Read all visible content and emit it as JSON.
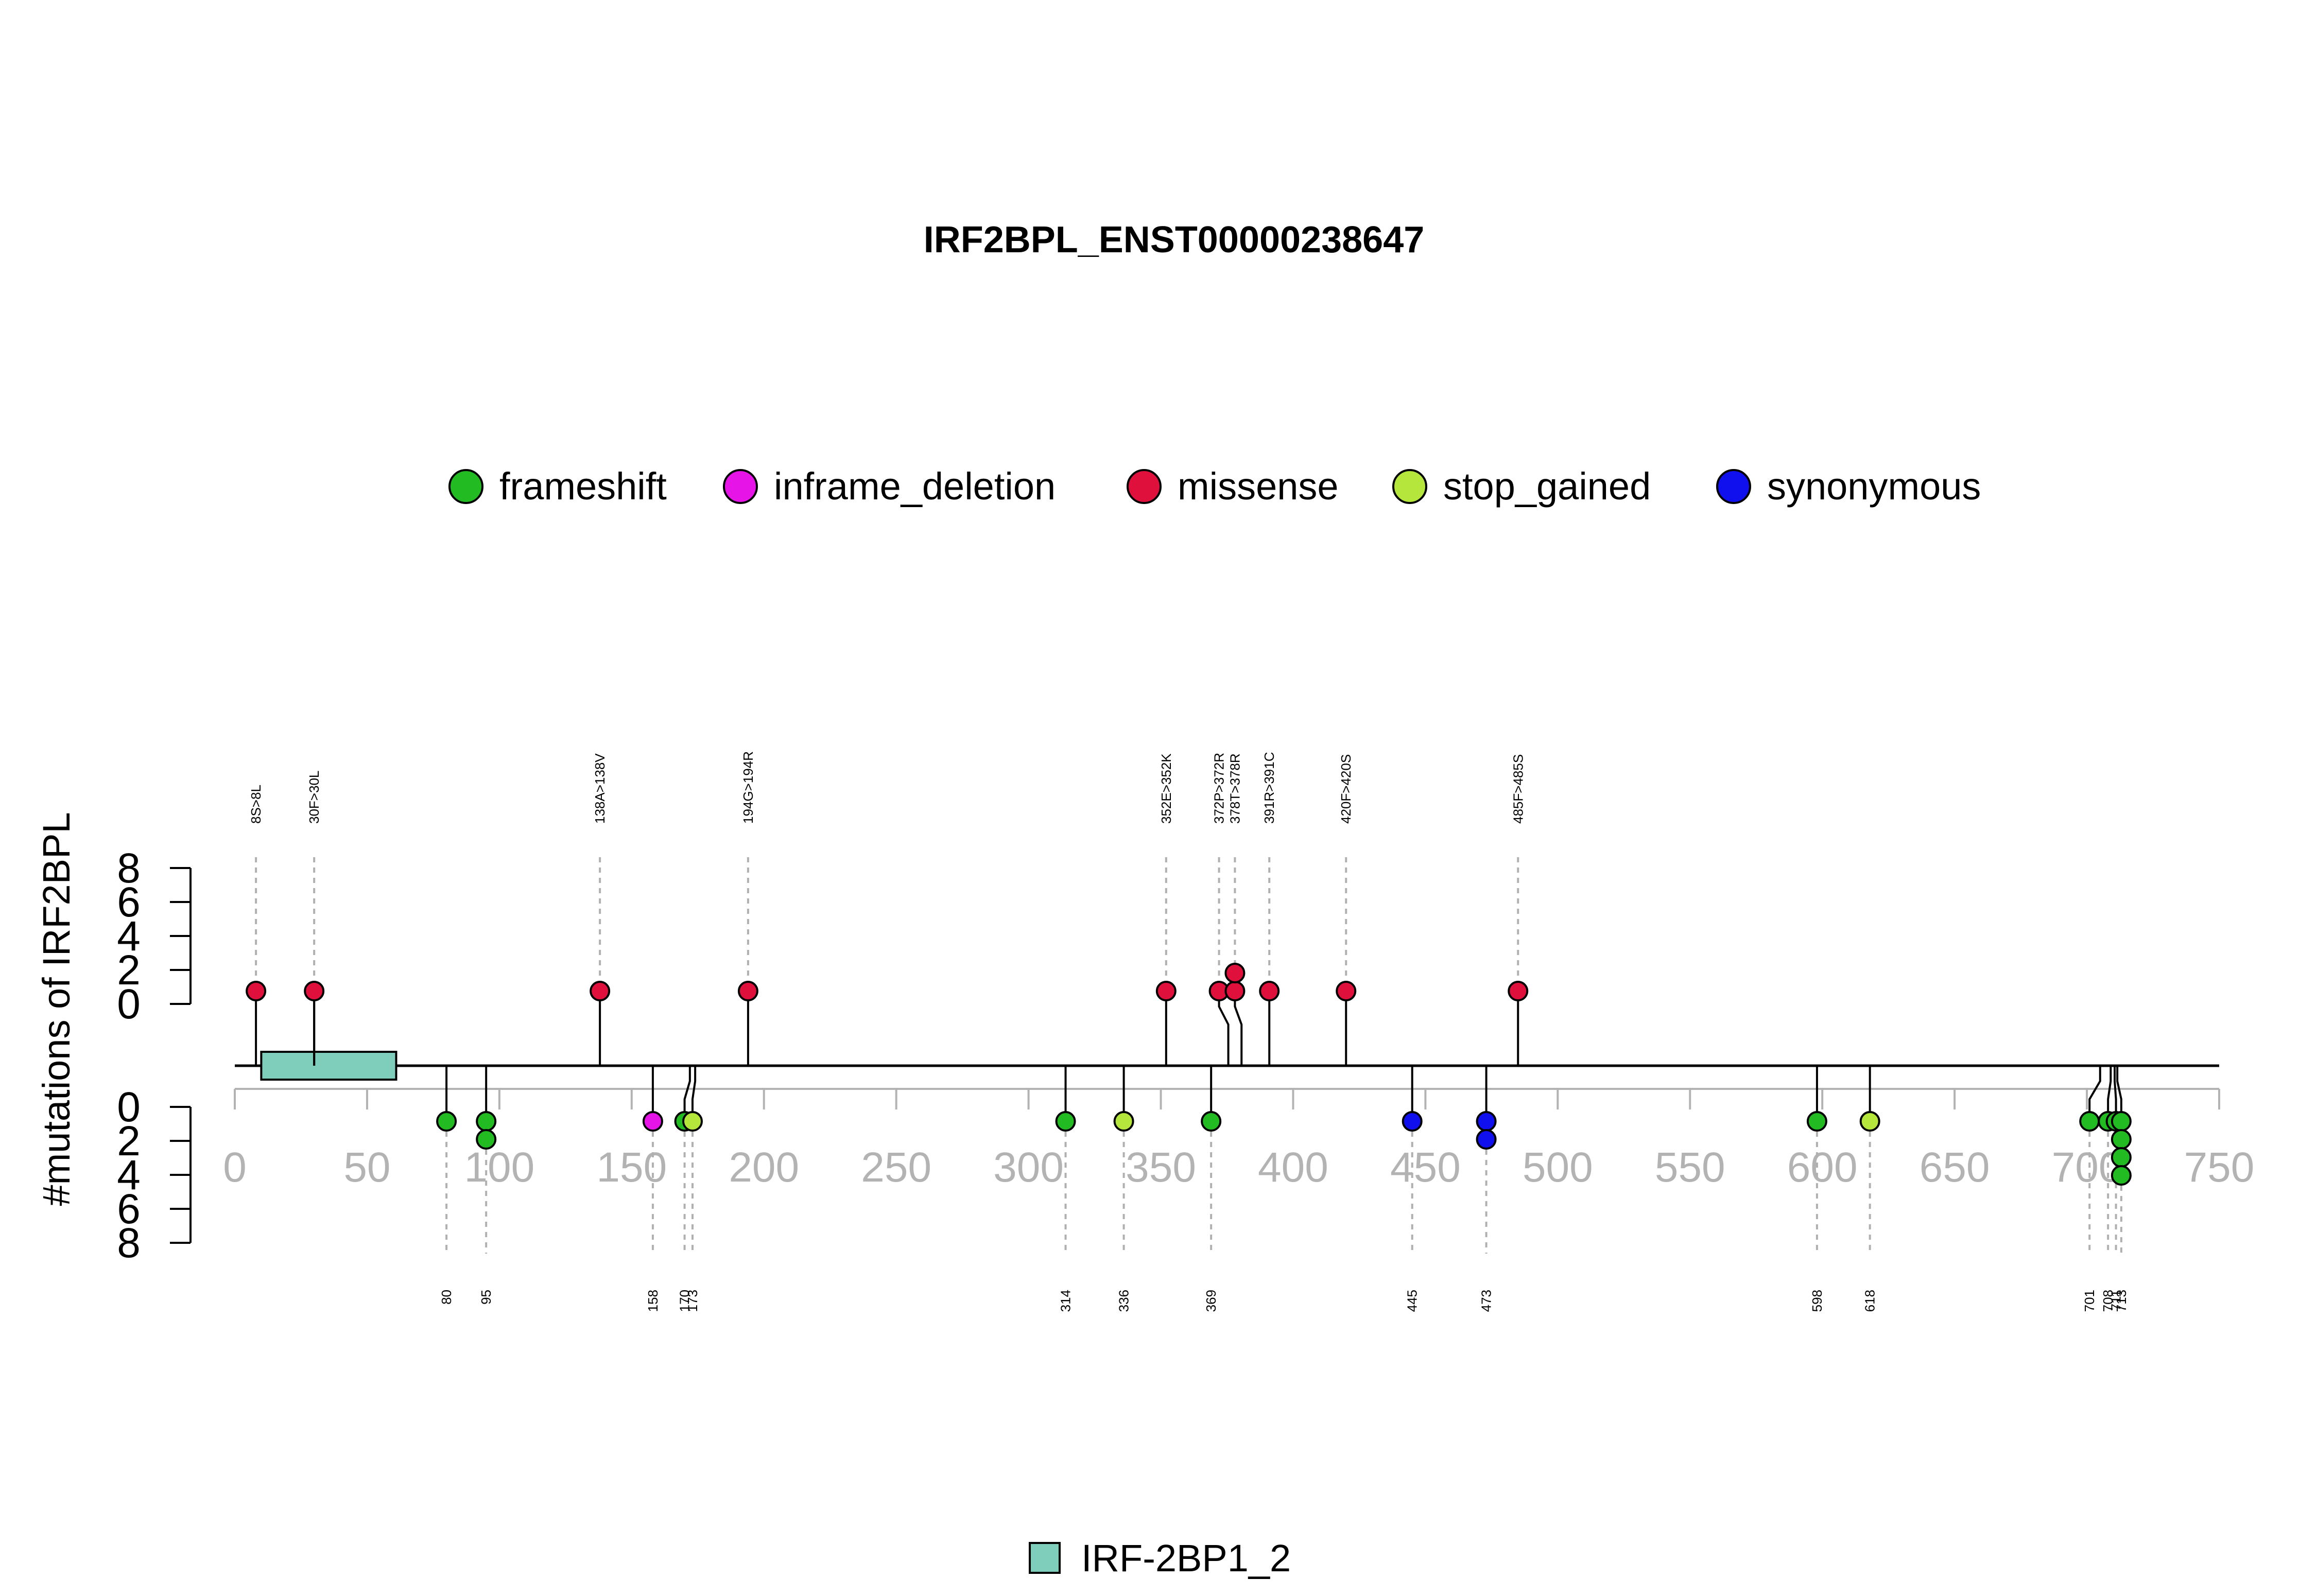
{
  "chart_data": {
    "type": "lollipop",
    "title": "IRF2BPL_ENST00000238647",
    "ylabel": "#mutations of IRF2BPL",
    "xlim": [
      0,
      750
    ],
    "x_ticks": [
      0,
      50,
      100,
      150,
      200,
      250,
      300,
      350,
      400,
      450,
      500,
      550,
      600,
      650,
      700,
      750
    ],
    "y_ticks": [
      0,
      2,
      4,
      6,
      8
    ],
    "legend": [
      {
        "name": "frameshift",
        "color": "#22bb22"
      },
      {
        "name": "inframe_deletion",
        "color": "#e614e6"
      },
      {
        "name": "missense",
        "color": "#e0103c"
      },
      {
        "name": "stop_gained",
        "color": "#b5e63c"
      },
      {
        "name": "synonymous",
        "color": "#1010ee"
      }
    ],
    "upper_mutations": [
      {
        "pos": 8,
        "label": "8S>8L",
        "type": "missense",
        "count": 1
      },
      {
        "pos": 30,
        "label": "30F>30L",
        "type": "missense",
        "count": 1
      },
      {
        "pos": 138,
        "label": "138A>138V",
        "type": "missense",
        "count": 1
      },
      {
        "pos": 194,
        "label": "194G>194R",
        "type": "missense",
        "count": 1
      },
      {
        "pos": 352,
        "label": "352E>352K",
        "type": "missense",
        "count": 1
      },
      {
        "pos": 372,
        "label": "372P>372R",
        "type": "missense",
        "count": 1
      },
      {
        "pos": 378,
        "label": "378T>378R",
        "type": "missense",
        "count": 2
      },
      {
        "pos": 391,
        "label": "391R>391C",
        "type": "missense",
        "count": 1
      },
      {
        "pos": 420,
        "label": "420F>420S",
        "type": "missense",
        "count": 1
      },
      {
        "pos": 485,
        "label": "485F>485S",
        "type": "missense",
        "count": 1
      }
    ],
    "lower_mutations": [
      {
        "pos": 80,
        "label": "80",
        "types": [
          "frameshift"
        ]
      },
      {
        "pos": 95,
        "label": "95",
        "types": [
          "frameshift",
          "frameshift"
        ]
      },
      {
        "pos": 158,
        "label": "158",
        "types": [
          "inframe_deletion"
        ]
      },
      {
        "pos": 170,
        "label": "170",
        "types": [
          "frameshift"
        ]
      },
      {
        "pos": 173,
        "label": "173",
        "types": [
          "stop_gained"
        ]
      },
      {
        "pos": 314,
        "label": "314",
        "types": [
          "frameshift"
        ]
      },
      {
        "pos": 336,
        "label": "336",
        "types": [
          "stop_gained"
        ]
      },
      {
        "pos": 369,
        "label": "369",
        "types": [
          "frameshift"
        ]
      },
      {
        "pos": 445,
        "label": "445",
        "types": [
          "synonymous"
        ]
      },
      {
        "pos": 473,
        "label": "473",
        "types": [
          "synonymous",
          "synonymous"
        ]
      },
      {
        "pos": 598,
        "label": "598",
        "types": [
          "frameshift"
        ]
      },
      {
        "pos": 618,
        "label": "618",
        "types": [
          "stop_gained"
        ]
      },
      {
        "pos": 701,
        "label": "701",
        "types": [
          "frameshift"
        ]
      },
      {
        "pos": 708,
        "label": "708",
        "types": [
          "frameshift"
        ]
      },
      {
        "pos": 711,
        "label": "711",
        "types": [
          "frameshift"
        ]
      },
      {
        "pos": 713,
        "label": "713",
        "types": [
          "frameshift",
          "frameshift",
          "frameshift",
          "frameshift"
        ]
      }
    ],
    "domains": [
      {
        "name": "IRF-2BP1_2",
        "start": 10,
        "end": 61,
        "color": "#7fcdbb"
      }
    ]
  }
}
